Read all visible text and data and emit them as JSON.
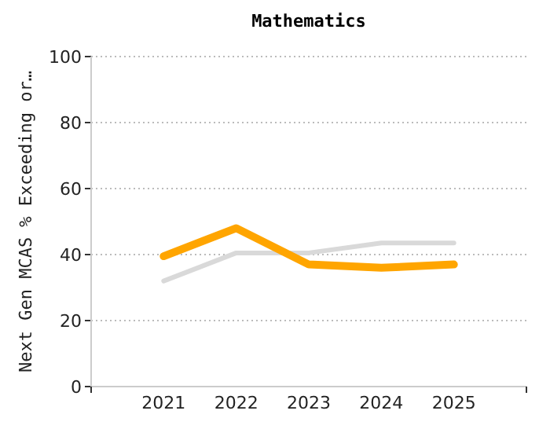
{
  "chart_data": {
    "type": "line",
    "title": "Mathematics",
    "ylabel": "Next Gen MCAS % Exceeding or…",
    "categories": [
      "2021",
      "2022",
      "2023",
      "2024",
      "2025"
    ],
    "series": [
      {
        "color": "#d9d9d9",
        "values": [
          32,
          40.5,
          40.5,
          43.5,
          43.5
        ]
      },
      {
        "color": "#ffa500",
        "values": [
          39.5,
          48,
          37,
          36,
          37
        ]
      }
    ],
    "ylim": [
      0,
      100
    ],
    "yticks": [
      0,
      20,
      40,
      60,
      80,
      100
    ],
    "grid": "y"
  }
}
